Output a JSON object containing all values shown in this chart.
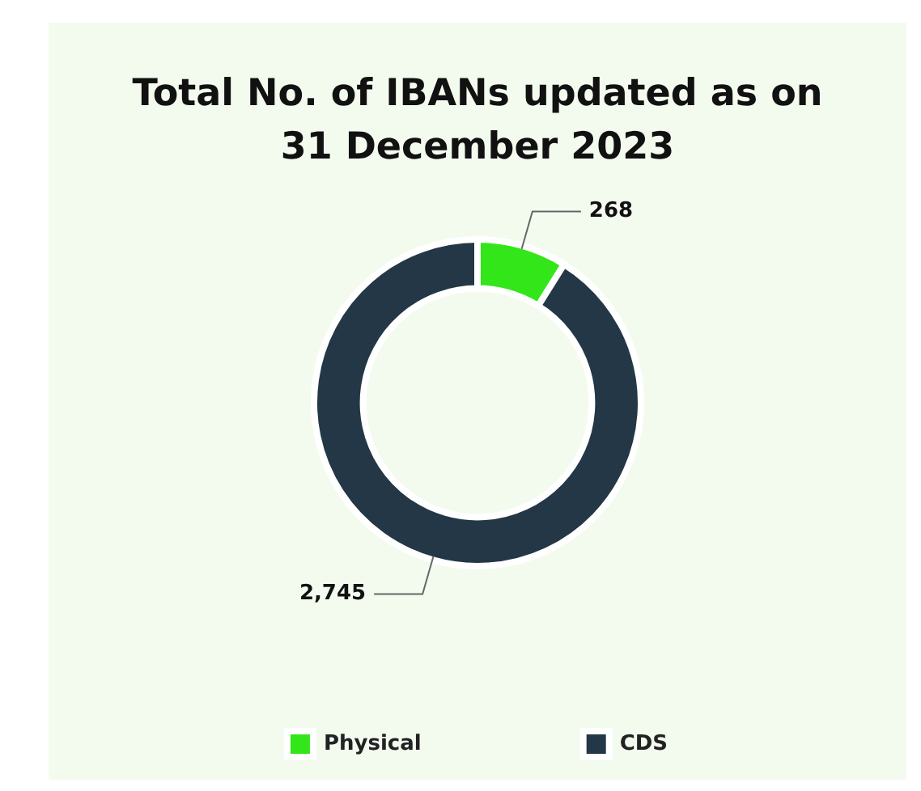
{
  "chart_data": {
    "type": "donut",
    "title": "Total No. of IBANs updated as on 31 December 2023",
    "categories": [
      "Physical",
      "CDS"
    ],
    "values": [
      268,
      2745
    ],
    "colors": [
      "#33e619",
      "#233746"
    ],
    "value_labels": [
      "268",
      "2,745"
    ],
    "legend": "bottom"
  }
}
